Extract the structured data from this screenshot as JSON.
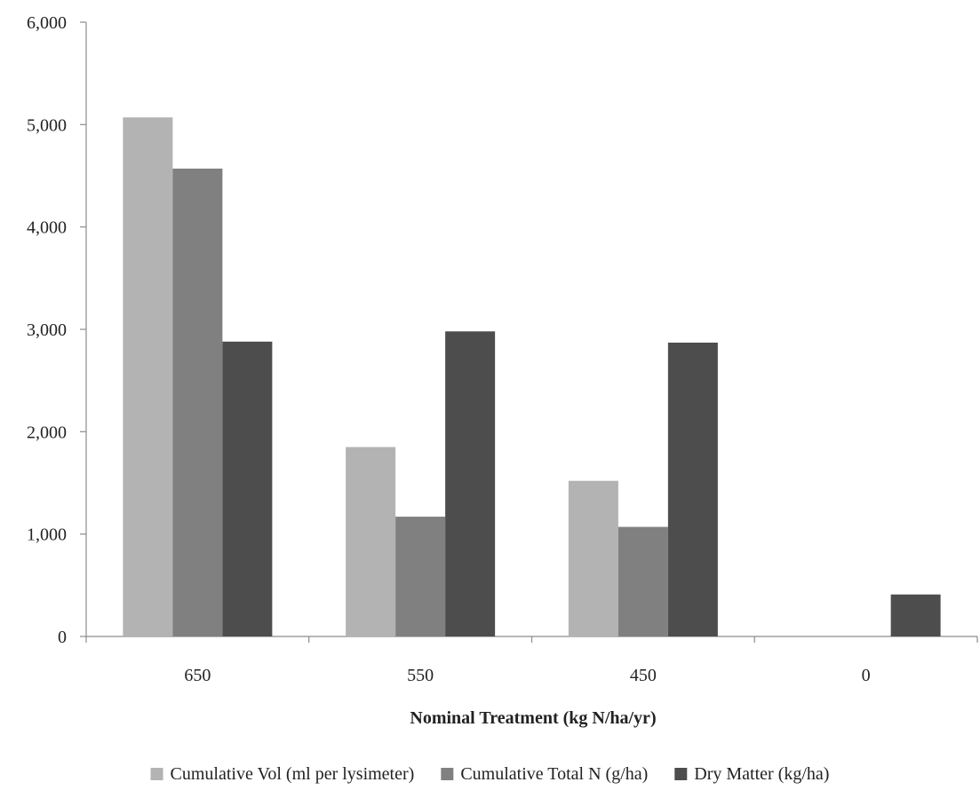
{
  "chart_data": {
    "type": "bar",
    "title": "",
    "xlabel": "Nominal Treatment (kg N/ha/yr)",
    "ylabel": "",
    "categories": [
      "650",
      "550",
      "450",
      "0"
    ],
    "series": [
      {
        "name": "Cumulative Vol (ml per lysimeter)",
        "values": [
          5070,
          1850,
          1520,
          0
        ],
        "color": "#b3b3b3"
      },
      {
        "name": "Cumulative Total N (g/ha)",
        "values": [
          4570,
          1170,
          1070,
          0
        ],
        "color": "#808080"
      },
      {
        "name": "Dry Matter (kg/ha)",
        "values": [
          2880,
          2980,
          2870,
          410
        ],
        "color": "#4d4d4d"
      }
    ],
    "ylim": [
      0,
      6000
    ],
    "yticks": [
      0,
      1000,
      2000,
      3000,
      4000,
      5000,
      6000
    ],
    "ytick_labels": [
      "0",
      "1,000",
      "2,000",
      "3,000",
      "4,000",
      "5,000",
      "6,000"
    ],
    "grid": false,
    "legend_position": "bottom"
  }
}
